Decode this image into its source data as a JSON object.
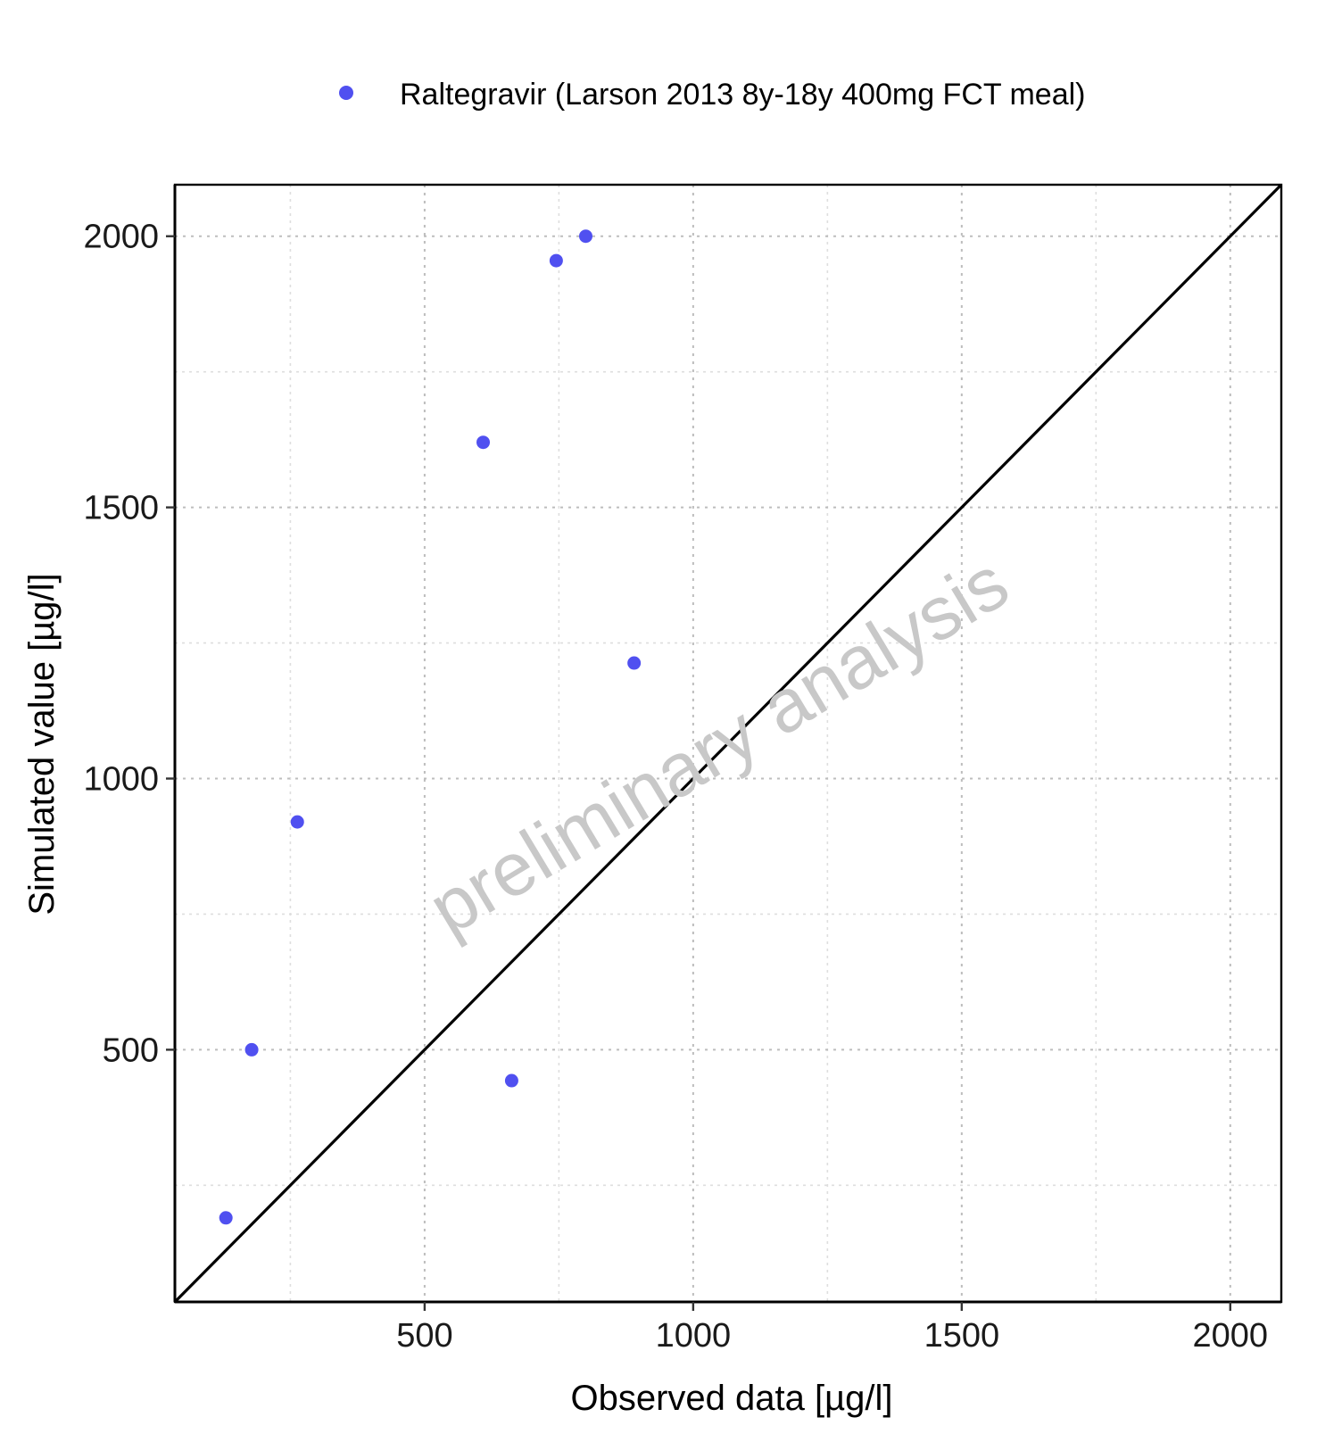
{
  "chart_data": {
    "type": "scatter",
    "xlabel": "Observed data [µg/l]",
    "ylabel": "Simulated value [µg/l]",
    "xlim": [
      35,
      2095
    ],
    "ylim": [
      35,
      2095
    ],
    "x_ticks": [
      500,
      1000,
      1500,
      2000
    ],
    "y_ticks": [
      500,
      1000,
      1500,
      2000
    ],
    "x_tick_labels": [
      "500",
      "1000",
      "1500",
      "2000"
    ],
    "y_tick_labels": [
      "500",
      "1000",
      "1500",
      "2000"
    ],
    "minor_ticks": [
      250,
      750,
      1250,
      1750
    ],
    "grid": true,
    "identity_line": true,
    "legend_position": "top",
    "series": [
      {
        "name": "Raltegravir (Larson 2013 8y-18y 400mg FCT meal)",
        "color": "#5050f0",
        "x": [
          130,
          178,
          263,
          609,
          662,
          745,
          800,
          890
        ],
        "y": [
          190,
          500,
          920,
          1620,
          443,
          1955,
          2000,
          1213
        ]
      }
    ],
    "watermark": "preliminary analysis"
  }
}
